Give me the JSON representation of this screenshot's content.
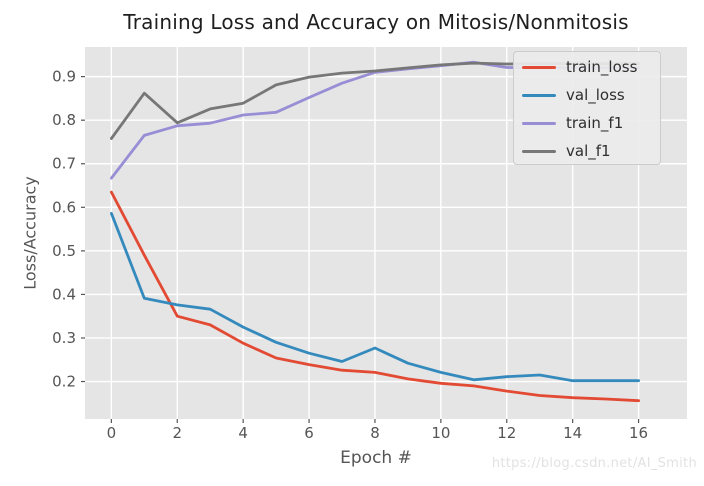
{
  "chart_data": {
    "type": "line",
    "title": "Training Loss and Accuracy on Mitosis/Nonmitosis",
    "xlabel": "Epoch #",
    "ylabel": "Loss/Accuracy",
    "grid": true,
    "plot_background": "#e5e5e5",
    "gridline_color": "#ffffff",
    "tick_color": "#555555",
    "legend_position": "upper right",
    "x": [
      0,
      1,
      2,
      3,
      4,
      5,
      6,
      7,
      8,
      9,
      10,
      11,
      12,
      13,
      14,
      15,
      16
    ],
    "xticks": [
      0,
      2,
      4,
      6,
      8,
      10,
      12,
      14,
      16
    ],
    "yticks": [
      0.2,
      0.3,
      0.4,
      0.5,
      0.6,
      0.7,
      0.8,
      0.9
    ],
    "xlim": [
      -0.8,
      17.47
    ],
    "ylim": [
      0.114,
      0.968
    ],
    "series": [
      {
        "name": "train_loss",
        "color": "#E24A33",
        "values": [
          0.635,
          0.49,
          0.35,
          0.33,
          0.288,
          0.254,
          0.239,
          0.226,
          0.221,
          0.206,
          0.196,
          0.19,
          0.178,
          0.168,
          0.163,
          0.16,
          0.156
        ]
      },
      {
        "name": "val_loss",
        "color": "#348ABD",
        "values": [
          0.586,
          0.391,
          0.376,
          0.366,
          0.325,
          0.29,
          0.265,
          0.246,
          0.277,
          0.242,
          0.221,
          0.204,
          0.211,
          0.215,
          0.202,
          0.202,
          0.202
        ]
      },
      {
        "name": "train_f1",
        "color": "#988ED5",
        "values": [
          0.667,
          0.765,
          0.787,
          0.793,
          0.812,
          0.818,
          0.852,
          0.885,
          0.91,
          0.918,
          0.925,
          0.933,
          0.921,
          0.92,
          0.92,
          0.92,
          0.92
        ]
      },
      {
        "name": "val_f1",
        "color": "#777777",
        "values": [
          0.758,
          0.862,
          0.794,
          0.826,
          0.839,
          0.881,
          0.899,
          0.908,
          0.913,
          0.92,
          0.927,
          0.931,
          0.929,
          0.93,
          0.93,
          0.93,
          0.93
        ]
      }
    ]
  },
  "watermark": "https://blog.csdn.net/AI_Smith"
}
